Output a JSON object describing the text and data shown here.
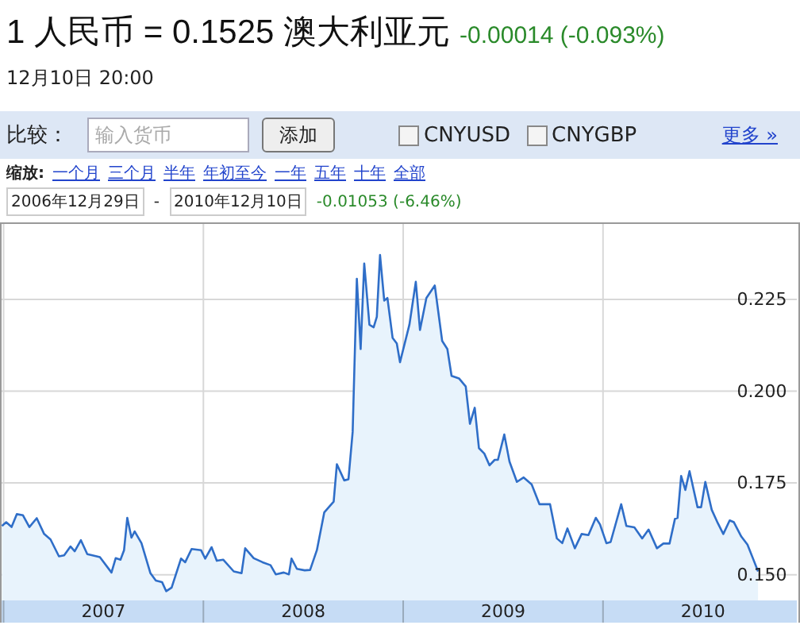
{
  "chart_data": {
    "type": "area",
    "title": "1 人民币 = 0.1525 澳大利亚元",
    "subtitle": "-0.00014 (-0.093%)",
    "annotations": [
      "12月10日 20:00",
      "比较：",
      "输入货币",
      "添加",
      "CNYUSD",
      "CNYGBP",
      "更多 »",
      "缩放:",
      "一个月",
      "三个月",
      "半年",
      "年初至今",
      "一年",
      "五年",
      "十年",
      "全部",
      "2006年12月29日",
      "-",
      "2010年12月10日",
      "-0.01053 (-6.46%)"
    ],
    "color": "#2f6ec8",
    "x": [
      2006.992,
      2007.013,
      2007.04,
      2007.066,
      2007.097,
      2007.129,
      2007.166,
      2007.203,
      2007.235,
      2007.277,
      2007.303,
      2007.335,
      2007.356,
      2007.387,
      2007.419,
      2007.445,
      2007.482,
      2007.54,
      2007.561,
      2007.585,
      2007.603,
      2007.619,
      2007.64,
      2007.656,
      2007.69,
      2007.735,
      2007.762,
      2007.793,
      2007.814,
      2007.841,
      2007.888,
      2007.909,
      2007.941,
      2007.988,
      2008.009,
      2008.041,
      2008.067,
      2008.099,
      2008.152,
      2008.191,
      2008.209,
      2008.252,
      2008.296,
      2008.336,
      2008.362,
      2008.402,
      2008.428,
      2008.441,
      2008.468,
      2008.507,
      2008.534,
      2008.568,
      2008.605,
      2008.652,
      2008.668,
      2008.705,
      2008.726,
      2008.747,
      2008.768,
      2008.787,
      2008.805,
      2008.831,
      2008.852,
      2008.868,
      2008.884,
      2008.905,
      2008.921,
      2008.947,
      2008.968,
      2008.984,
      2009.031,
      2009.063,
      2009.084,
      2009.116,
      2009.158,
      2009.195,
      2009.221,
      2009.242,
      2009.279,
      2009.313,
      2009.334,
      2009.358,
      2009.379,
      2009.406,
      2009.432,
      2009.458,
      2009.474,
      2009.506,
      2009.532,
      2009.569,
      2009.603,
      2009.643,
      2009.682,
      2009.735,
      2009.769,
      2009.796,
      2009.822,
      2009.859,
      2009.893,
      2009.927,
      2009.964,
      2009.985,
      2010.017,
      2010.038,
      2010.091,
      2010.117,
      2010.157,
      2010.196,
      2010.228,
      2010.27,
      2010.302,
      2010.333,
      2010.36,
      2010.373,
      2010.391,
      2010.412,
      2010.433,
      2010.473,
      2010.491,
      2010.512,
      2010.544,
      2010.575,
      2010.602,
      2010.634,
      2010.655,
      2010.692,
      2010.723,
      2010.75,
      2010.776
    ],
    "values": [
      0.1633,
      0.1643,
      0.163,
      0.1665,
      0.1662,
      0.163,
      0.1654,
      0.1611,
      0.1596,
      0.155,
      0.1553,
      0.1577,
      0.1564,
      0.1594,
      0.1556,
      0.1553,
      0.1548,
      0.1506,
      0.1545,
      0.1541,
      0.1567,
      0.1655,
      0.1601,
      0.1618,
      0.1586,
      0.1504,
      0.1484,
      0.148,
      0.1455,
      0.1465,
      0.1544,
      0.1534,
      0.157,
      0.1567,
      0.1544,
      0.1575,
      0.1538,
      0.1541,
      0.1509,
      0.1504,
      0.1572,
      0.1545,
      0.1534,
      0.1526,
      0.1501,
      0.1506,
      0.1501,
      0.1544,
      0.1516,
      0.1512,
      0.1513,
      0.1567,
      0.167,
      0.1699,
      0.1801,
      0.1757,
      0.176,
      0.1889,
      0.2306,
      0.2115,
      0.2348,
      0.2181,
      0.2174,
      0.2203,
      0.2371,
      0.2247,
      0.2254,
      0.2145,
      0.213,
      0.2079,
      0.2181,
      0.2298,
      0.2167,
      0.2254,
      0.2288,
      0.2137,
      0.2115,
      0.2042,
      0.2035,
      0.2013,
      0.1911,
      0.1955,
      0.1845,
      0.183,
      0.1798,
      0.1813,
      0.1813,
      0.1882,
      0.1808,
      0.1753,
      0.1765,
      0.1746,
      0.1692,
      0.1692,
      0.1599,
      0.1586,
      0.1626,
      0.1572,
      0.1611,
      0.1608,
      0.1655,
      0.1637,
      0.1586,
      0.1589,
      0.1692,
      0.1633,
      0.1629,
      0.1599,
      0.1623,
      0.1572,
      0.1585,
      0.1585,
      0.1652,
      0.1655,
      0.1769,
      0.1731,
      0.1782,
      0.1684,
      0.1684,
      0.1753,
      0.1677,
      0.164,
      0.1611,
      0.1648,
      0.1643,
      0.1604,
      0.1582,
      0.1545,
      0.1509
    ],
    "xlim": [
      2006.99,
      2010.97
    ],
    "ylim": [
      0.143,
      0.246
    ],
    "xticks": [
      {
        "value": 2007,
        "label": null
      },
      {
        "value": 2007.5,
        "label": "2007"
      },
      {
        "value": 2008,
        "label": null
      },
      {
        "value": 2008.5,
        "label": "2008"
      },
      {
        "value": 2009,
        "label": null
      },
      {
        "value": 2009.5,
        "label": "2009"
      },
      {
        "value": 2010,
        "label": null
      },
      {
        "value": 2010.5,
        "label": "2010"
      }
    ],
    "yticks": [
      {
        "value": 0.15,
        "label": "0.150"
      },
      {
        "value": 0.175,
        "label": "0.175"
      },
      {
        "value": 0.2,
        "label": "0.200"
      },
      {
        "value": 0.225,
        "label": "0.225"
      }
    ],
    "grid": true
  }
}
